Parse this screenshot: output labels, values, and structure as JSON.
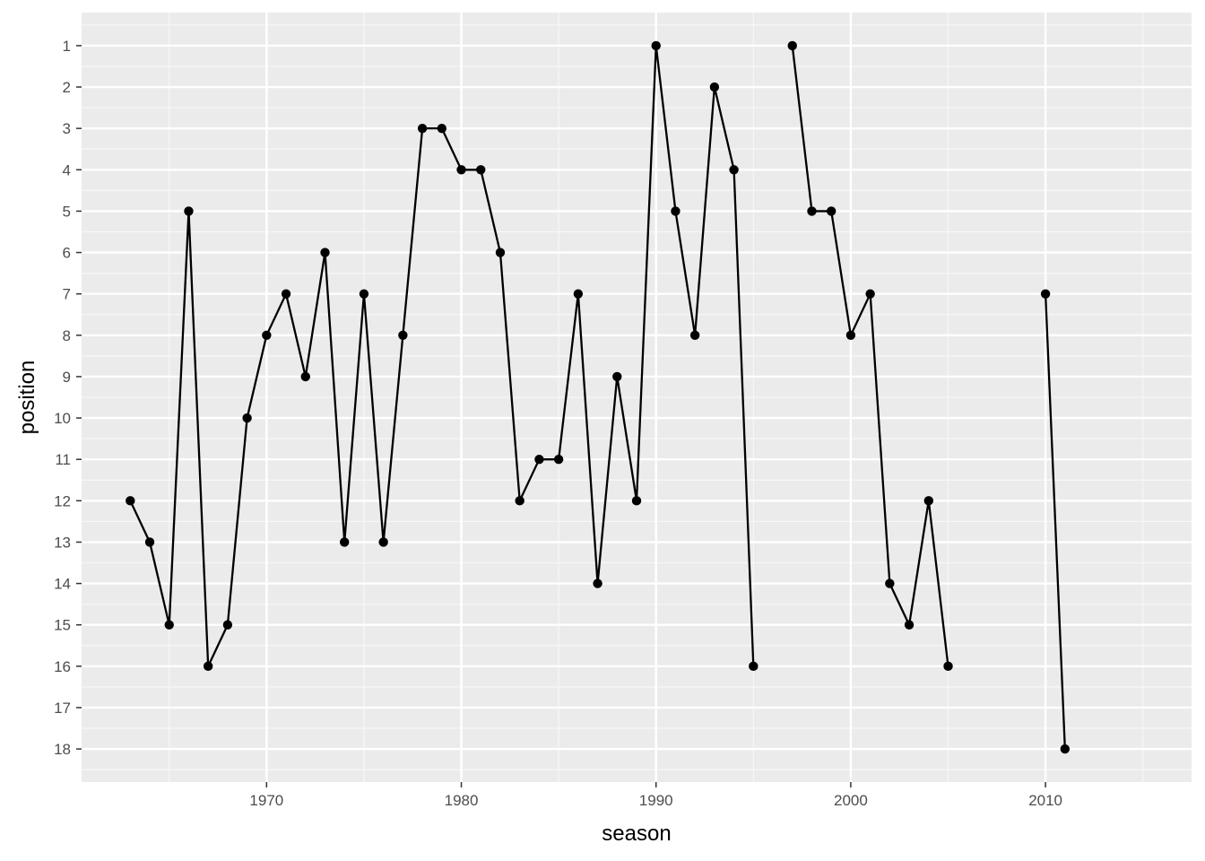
{
  "chart_data": {
    "type": "line",
    "xlabel": "season",
    "ylabel": "position",
    "x_ticks": [
      1970,
      1980,
      1990,
      2000,
      2010
    ],
    "y_ticks": [
      1,
      2,
      3,
      4,
      5,
      6,
      7,
      8,
      9,
      10,
      11,
      12,
      13,
      14,
      15,
      16,
      17,
      18
    ],
    "xlim": [
      1960.5,
      2017.5
    ],
    "ylim": [
      18.8,
      0.2
    ],
    "y_reversed": true,
    "grid": true,
    "legend": "none",
    "series": [
      {
        "line_color": "#000000",
        "point_color": "#000000",
        "segments": [
          [
            {
              "season": 1963,
              "position": 12
            },
            {
              "season": 1964,
              "position": 13
            },
            {
              "season": 1965,
              "position": 15
            },
            {
              "season": 1966,
              "position": 5
            },
            {
              "season": 1967,
              "position": 16
            },
            {
              "season": 1968,
              "position": 15
            },
            {
              "season": 1969,
              "position": 10
            },
            {
              "season": 1970,
              "position": 8
            },
            {
              "season": 1971,
              "position": 7
            },
            {
              "season": 1972,
              "position": 9
            },
            {
              "season": 1973,
              "position": 6
            },
            {
              "season": 1974,
              "position": 13
            },
            {
              "season": 1975,
              "position": 7
            },
            {
              "season": 1976,
              "position": 13
            },
            {
              "season": 1977,
              "position": 8
            },
            {
              "season": 1978,
              "position": 3
            },
            {
              "season": 1979,
              "position": 3
            },
            {
              "season": 1980,
              "position": 4
            },
            {
              "season": 1981,
              "position": 4
            },
            {
              "season": 1982,
              "position": 6
            },
            {
              "season": 1983,
              "position": 12
            },
            {
              "season": 1984,
              "position": 11
            },
            {
              "season": 1985,
              "position": 11
            },
            {
              "season": 1986,
              "position": 7
            },
            {
              "season": 1987,
              "position": 14
            },
            {
              "season": 1988,
              "position": 9
            },
            {
              "season": 1989,
              "position": 12
            },
            {
              "season": 1990,
              "position": 1
            },
            {
              "season": 1991,
              "position": 5
            },
            {
              "season": 1992,
              "position": 8
            },
            {
              "season": 1993,
              "position": 2
            },
            {
              "season": 1994,
              "position": 4
            },
            {
              "season": 1995,
              "position": 16
            }
          ],
          [
            {
              "season": 1997,
              "position": 1
            },
            {
              "season": 1998,
              "position": 5
            },
            {
              "season": 1999,
              "position": 5
            },
            {
              "season": 2000,
              "position": 8
            },
            {
              "season": 2001,
              "position": 7
            },
            {
              "season": 2002,
              "position": 14
            },
            {
              "season": 2003,
              "position": 15
            },
            {
              "season": 2004,
              "position": 12
            },
            {
              "season": 2005,
              "position": 16
            }
          ],
          [
            {
              "season": 2010,
              "position": 7
            },
            {
              "season": 2011,
              "position": 18
            }
          ]
        ]
      }
    ]
  },
  "colors": {
    "panel_background": "#ebebeb",
    "grid_major": "#ffffff",
    "grid_minor": "#f7f7f7",
    "tick_mark": "#333333"
  }
}
